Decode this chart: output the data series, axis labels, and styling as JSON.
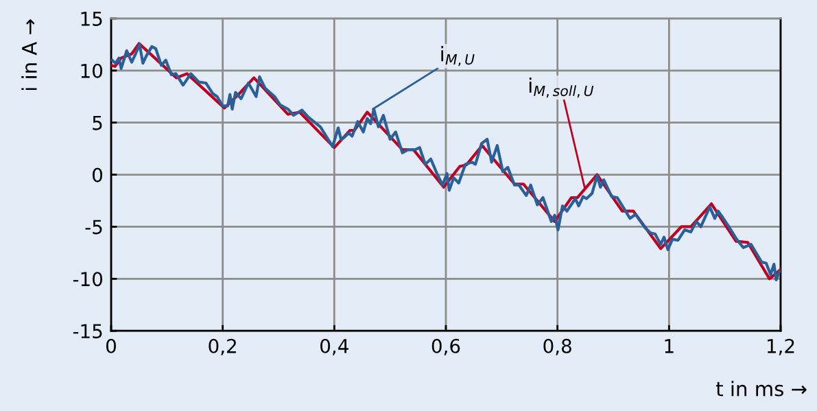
{
  "chart_data": {
    "type": "line",
    "xlabel": "t in ms →",
    "ylabel": "i in A →",
    "xlim": [
      0,
      1.2
    ],
    "ylim": [
      -15,
      15
    ],
    "xticks": [
      0,
      {
        "value": 0.2,
        "label": "0,2"
      },
      {
        "value": 0.4,
        "label": "0,4"
      },
      {
        "value": 0.6,
        "label": "0,6"
      },
      {
        "value": 0.8,
        "label": "0,8"
      },
      1,
      {
        "value": 1.2,
        "label": "1,2"
      }
    ],
    "yticks": [
      -15,
      -10,
      -5,
      0,
      5,
      10,
      15
    ],
    "grid": true,
    "legend": false,
    "series": [
      {
        "color": "#c00020",
        "x": [
          0,
          0.007,
          0.018,
          0.037,
          0.05,
          0.117,
          0.136,
          0.203,
          0.23,
          0.256,
          0.317,
          0.338,
          0.4,
          0.428,
          0.436,
          0.459,
          0.522,
          0.542,
          0.596,
          0.625,
          0.637,
          0.665,
          0.723,
          0.739,
          0.795,
          0.825,
          0.836,
          0.871,
          0.916,
          0.936,
          0.985,
          1.022,
          1.039,
          1.076,
          1.12,
          1.141,
          1.18,
          1.2
        ],
        "values": [
          10.5,
          10.4,
          11.2,
          11.6,
          12.6,
          9.3,
          9.7,
          6.4,
          7.8,
          9.3,
          5.8,
          6.0,
          2.6,
          4.25,
          4.25,
          6.0,
          2.4,
          2.4,
          -1.2,
          0.8,
          0.95,
          2.8,
          -0.9,
          -0.9,
          -4.5,
          -2.2,
          -2.2,
          0.0,
          -3.5,
          -3.5,
          -7.1,
          -5.0,
          -5.0,
          -2.8,
          -6.4,
          -6.5,
          -10.0,
          -9.1
        ]
      },
      {
        "color": "#2a6099",
        "x": [
          0.002,
          0.008,
          0.014,
          0.018,
          0.028,
          0.037,
          0.043,
          0.051,
          0.057,
          0.063,
          0.073,
          0.08,
          0.09,
          0.098,
          0.108,
          0.116,
          0.129,
          0.143,
          0.157,
          0.17,
          0.182,
          0.19,
          0.2,
          0.209,
          0.213,
          0.217,
          0.223,
          0.233,
          0.246,
          0.26,
          0.266,
          0.276,
          0.293,
          0.303,
          0.317,
          0.327,
          0.342,
          0.354,
          0.375,
          0.397,
          0.407,
          0.412,
          0.416,
          0.426,
          0.432,
          0.442,
          0.452,
          0.459,
          0.465,
          0.471,
          0.479,
          0.488,
          0.5,
          0.51,
          0.522,
          0.532,
          0.545,
          0.553,
          0.563,
          0.573,
          0.584,
          0.594,
          0.602,
          0.606,
          0.614,
          0.623,
          0.635,
          0.647,
          0.653,
          0.664,
          0.674,
          0.682,
          0.692,
          0.702,
          0.711,
          0.723,
          0.731,
          0.744,
          0.752,
          0.764,
          0.774,
          0.789,
          0.795,
          0.801,
          0.809,
          0.817,
          0.832,
          0.838,
          0.846,
          0.852,
          0.862,
          0.871,
          0.877,
          0.883,
          0.897,
          0.907,
          0.922,
          0.93,
          0.94,
          0.957,
          0.967,
          0.975,
          0.985,
          0.991,
          0.998,
          1.006,
          1.016,
          1.028,
          1.039,
          1.049,
          1.057,
          1.073,
          1.082,
          1.088,
          1.096,
          1.106,
          1.121,
          1.133,
          1.147,
          1.166,
          1.174,
          1.182,
          1.188,
          1.192,
          1.198
        ],
        "values": [
          11.0,
          10.7,
          11.2,
          10.2,
          11.9,
          10.8,
          11.5,
          12.5,
          10.7,
          11.4,
          12.3,
          12.1,
          10.5,
          11.0,
          9.6,
          9.7,
          8.6,
          9.7,
          8.9,
          8.8,
          7.8,
          7.5,
          6.6,
          6.6,
          7.7,
          6.3,
          7.9,
          7.3,
          8.8,
          7.5,
          9.4,
          8.3,
          7.5,
          6.7,
          6.3,
          5.7,
          6.2,
          5.5,
          4.6,
          2.7,
          4.5,
          3.4,
          3.5,
          4.0,
          3.7,
          5.1,
          4.1,
          5.4,
          4.9,
          6.3,
          4.6,
          5.7,
          3.4,
          4.1,
          2.1,
          2.4,
          2.4,
          2.6,
          1.0,
          1.5,
          0.1,
          -1.0,
          0.1,
          -1.5,
          -0.3,
          -0.8,
          1.0,
          1.2,
          1.0,
          3.0,
          3.4,
          1.2,
          2.8,
          0.3,
          0.7,
          -1.0,
          -1.0,
          -2.0,
          -1.0,
          -2.9,
          -2.2,
          -4.5,
          -3.9,
          -5.3,
          -3.0,
          -3.5,
          -2.3,
          -3.0,
          -2.1,
          -2.3,
          -1.8,
          -0.1,
          -1.2,
          -0.5,
          -2.1,
          -2.2,
          -3.5,
          -4.2,
          -3.8,
          -5.1,
          -5.6,
          -5.7,
          -6.7,
          -6.0,
          -7.2,
          -6.2,
          -6.3,
          -5.3,
          -5.5,
          -4.5,
          -5.0,
          -3.1,
          -4.2,
          -3.5,
          -4.1,
          -4.9,
          -6.2,
          -7.0,
          -6.7,
          -8.4,
          -8.5,
          -9.6,
          -8.6,
          -10.1,
          -9.3
        ]
      }
    ],
    "annotations": [
      {
        "text": "i$_{M,U}$",
        "x": 0.469,
        "y": 6.3
      },
      {
        "text": "i$_{M,soll,U}$",
        "x": 0.849,
        "y": -1.3
      }
    ]
  }
}
